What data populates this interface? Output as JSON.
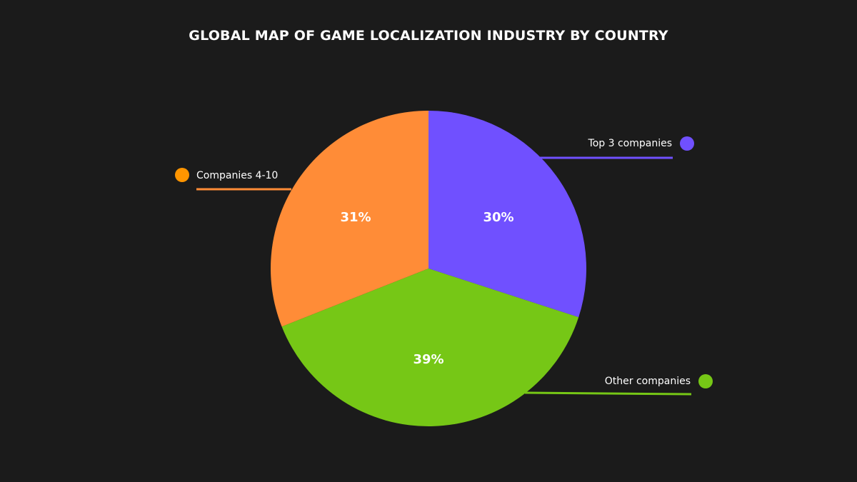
{
  "chart_data": {
    "type": "pie",
    "title": "GLOBAL MAP OF GAME LOCALIZATION INDUSTRY BY COUNTRY",
    "slices": [
      {
        "label": "Top 3 companies",
        "value": 30,
        "display": "30%",
        "color": "#7050ff"
      },
      {
        "label": "Other companies",
        "value": 39,
        "display": "39%",
        "color": "#76c716"
      },
      {
        "label": "Companies 4-10",
        "value": 31,
        "display": "31%",
        "color": "#ff8c37"
      }
    ],
    "legend_colors": {
      "Top 3 companies": "#7050ff",
      "Other companies": "#76c716",
      "Companies 4-10": "#ff9500"
    }
  },
  "colors": {
    "background": "#1b1b1b",
    "text": "#ffffff"
  }
}
